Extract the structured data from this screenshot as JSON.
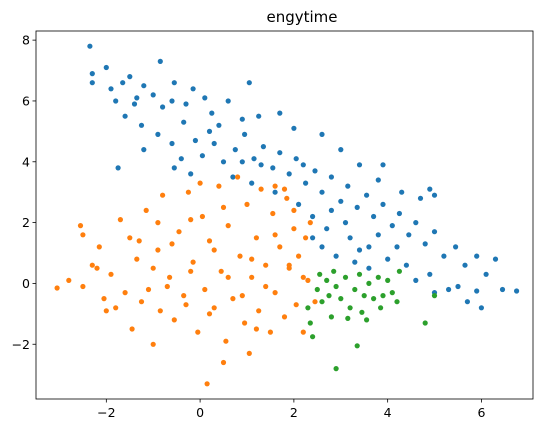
{
  "chart_data": {
    "type": "scatter",
    "title": "engytime",
    "xlabel": "",
    "ylabel": "",
    "xlim": [
      -3.5,
      7.1
    ],
    "ylim": [
      -3.8,
      8.3
    ],
    "xticks": [
      -2,
      0,
      2,
      4,
      6
    ],
    "yticks": [
      -2,
      0,
      2,
      4,
      6,
      8
    ],
    "grid": false,
    "legend": "none",
    "series": [
      {
        "color": "#1f77b4",
        "points": [
          [
            -2.35,
            7.8
          ],
          [
            -2.3,
            6.9
          ],
          [
            -2.3,
            6.6
          ],
          [
            -2.0,
            7.1
          ],
          [
            -1.9,
            6.4
          ],
          [
            -1.8,
            6.0
          ],
          [
            -1.65,
            6.6
          ],
          [
            -1.5,
            6.8
          ],
          [
            -1.35,
            6.1
          ],
          [
            -1.2,
            6.5
          ],
          [
            -1.0,
            6.2
          ],
          [
            -0.85,
            7.3
          ],
          [
            -0.6,
            6.0
          ],
          [
            -0.55,
            6.6
          ],
          [
            -0.3,
            5.9
          ],
          [
            -0.15,
            6.4
          ],
          [
            0.1,
            6.1
          ],
          [
            0.25,
            5.6
          ],
          [
            0.4,
            5.2
          ],
          [
            0.6,
            6.0
          ],
          [
            0.9,
            5.4
          ],
          [
            1.05,
            6.6
          ],
          [
            1.25,
            5.5
          ],
          [
            -1.6,
            5.5
          ],
          [
            -1.25,
            5.2
          ],
          [
            -0.9,
            4.9
          ],
          [
            -0.6,
            4.6
          ],
          [
            -0.35,
            5.3
          ],
          [
            -0.1,
            4.7
          ],
          [
            0.05,
            4.2
          ],
          [
            0.3,
            4.6
          ],
          [
            0.5,
            4.0
          ],
          [
            0.75,
            4.4
          ],
          [
            0.95,
            4.9
          ],
          [
            1.15,
            4.1
          ],
          [
            1.35,
            4.5
          ],
          [
            1.55,
            3.8
          ],
          [
            1.7,
            4.3
          ],
          [
            1.9,
            3.6
          ],
          [
            2.05,
            4.1
          ],
          [
            2.25,
            3.3
          ],
          [
            2.45,
            3.7
          ],
          [
            2.6,
            3.0
          ],
          [
            2.8,
            3.5
          ],
          [
            3.0,
            2.7
          ],
          [
            3.15,
            3.2
          ],
          [
            3.35,
            2.5
          ],
          [
            3.55,
            2.9
          ],
          [
            3.7,
            2.2
          ],
          [
            3.9,
            2.6
          ],
          [
            4.1,
            1.9
          ],
          [
            4.25,
            2.3
          ],
          [
            4.45,
            1.6
          ],
          [
            4.6,
            2.0
          ],
          [
            4.8,
            1.3
          ],
          [
            5.0,
            1.7
          ],
          [
            5.2,
            0.9
          ],
          [
            5.45,
            1.2
          ],
          [
            5.65,
            0.6
          ],
          [
            5.9,
            0.9
          ],
          [
            6.1,
            0.3
          ],
          [
            6.3,
            0.8
          ],
          [
            6.45,
            -0.2
          ],
          [
            6.75,
            -0.25
          ],
          [
            -1.75,
            3.8
          ],
          [
            -1.2,
            4.4
          ],
          [
            -0.55,
            3.8
          ],
          [
            -0.2,
            3.6
          ],
          [
            0.7,
            3.5
          ],
          [
            1.1,
            3.3
          ],
          [
            1.6,
            3.0
          ],
          [
            2.1,
            2.6
          ],
          [
            2.4,
            2.2
          ],
          [
            2.7,
            1.8
          ],
          [
            3.2,
            1.5
          ],
          [
            3.6,
            1.2
          ],
          [
            4.0,
            0.8
          ],
          [
            4.4,
            0.6
          ],
          [
            4.9,
            0.3
          ],
          [
            5.3,
            -0.2
          ],
          [
            5.7,
            -0.6
          ],
          [
            6.0,
            -0.8
          ],
          [
            5.9,
            -0.25
          ],
          [
            5.5,
            -0.1
          ],
          [
            5.0,
            -0.3
          ],
          [
            4.6,
            0.1
          ],
          [
            3.0,
            4.4
          ],
          [
            3.4,
            3.9
          ],
          [
            3.8,
            3.4
          ],
          [
            4.3,
            3.0
          ],
          [
            4.7,
            2.8
          ],
          [
            5.0,
            2.9
          ],
          [
            4.9,
            3.1
          ],
          [
            3.9,
            3.9
          ],
          [
            2.6,
            4.9
          ],
          [
            2.0,
            5.1
          ],
          [
            1.7,
            5.6
          ],
          [
            0.2,
            5.0
          ],
          [
            -0.8,
            5.8
          ],
          [
            -1.4,
            5.9
          ],
          [
            -0.4,
            4.1
          ],
          [
            0.9,
            4.0
          ],
          [
            1.3,
            3.9
          ],
          [
            2.2,
            3.9
          ],
          [
            2.8,
            2.4
          ],
          [
            3.1,
            2.0
          ],
          [
            3.4,
            1.1
          ],
          [
            3.8,
            1.6
          ],
          [
            4.2,
            1.2
          ],
          [
            2.4,
            1.5
          ],
          [
            2.6,
            1.2
          ],
          [
            2.9,
            0.9
          ],
          [
            3.3,
            0.7
          ],
          [
            3.6,
            0.5
          ]
        ]
      },
      {
        "color": "#ff7f0e",
        "points": [
          [
            -3.05,
            -0.15
          ],
          [
            -2.8,
            0.1
          ],
          [
            -2.55,
            1.9
          ],
          [
            -2.5,
            1.6
          ],
          [
            -2.5,
            -0.1
          ],
          [
            -2.3,
            0.6
          ],
          [
            -2.15,
            1.2
          ],
          [
            -2.05,
            -0.5
          ],
          [
            -2.0,
            -0.9
          ],
          [
            -1.9,
            0.3
          ],
          [
            -1.7,
            2.1
          ],
          [
            -1.6,
            -0.3
          ],
          [
            -1.5,
            1.5
          ],
          [
            -1.45,
            -1.5
          ],
          [
            -1.35,
            0.8
          ],
          [
            -1.25,
            -0.6
          ],
          [
            -1.15,
            2.4
          ],
          [
            -1.0,
            -2.0
          ],
          [
            -0.9,
            1.1
          ],
          [
            -0.85,
            -0.9
          ],
          [
            -0.8,
            2.9
          ],
          [
            -0.65,
            0.2
          ],
          [
            -0.55,
            -1.2
          ],
          [
            -0.45,
            1.7
          ],
          [
            -0.35,
            -0.4
          ],
          [
            -0.25,
            3.0
          ],
          [
            -0.15,
            0.7
          ],
          [
            -0.05,
            -1.6
          ],
          [
            0.05,
            2.2
          ],
          [
            0.1,
            -0.2
          ],
          [
            0.15,
            -3.3
          ],
          [
            0.2,
            1.4
          ],
          [
            0.3,
            -0.8
          ],
          [
            0.4,
            3.2
          ],
          [
            0.45,
            0.4
          ],
          [
            0.55,
            -1.9
          ],
          [
            0.6,
            1.9
          ],
          [
            0.7,
            -0.5
          ],
          [
            0.8,
            3.5
          ],
          [
            0.85,
            0.9
          ],
          [
            0.95,
            -1.3
          ],
          [
            1.0,
            2.6
          ],
          [
            1.05,
            -2.3
          ],
          [
            1.1,
            0.2
          ],
          [
            1.2,
            1.5
          ],
          [
            1.25,
            -0.9
          ],
          [
            1.3,
            3.1
          ],
          [
            1.4,
            0.6
          ],
          [
            1.5,
            -1.6
          ],
          [
            1.55,
            2.3
          ],
          [
            1.6,
            -0.3
          ],
          [
            1.7,
            1.2
          ],
          [
            1.8,
            -1.1
          ],
          [
            1.85,
            2.8
          ],
          [
            1.9,
            0.5
          ],
          [
            2.0,
            1.8
          ],
          [
            2.05,
            -0.7
          ],
          [
            2.1,
            0.9
          ],
          [
            2.2,
            -1.6
          ],
          [
            2.25,
            1.5
          ],
          [
            2.3,
            0.1
          ],
          [
            2.35,
            2.0
          ],
          [
            2.45,
            -0.6
          ],
          [
            2.2,
            0.2
          ],
          [
            1.9,
            0.6
          ],
          [
            1.6,
            1.6
          ],
          [
            1.1,
            0.8
          ],
          [
            0.6,
            0.2
          ],
          [
            0.3,
            1.1
          ],
          [
            -0.2,
            0.4
          ],
          [
            -0.6,
            1.3
          ],
          [
            -1.0,
            0.5
          ],
          [
            -1.3,
            1.4
          ],
          [
            -0.7,
            -0.1
          ],
          [
            -0.3,
            -0.7
          ],
          [
            0.2,
            -1.0
          ],
          [
            0.9,
            -0.4
          ],
          [
            1.4,
            -0.1
          ],
          [
            0.5,
            2.5
          ],
          [
            -0.2,
            2.1
          ],
          [
            -0.9,
            2.0
          ],
          [
            1.6,
            3.2
          ],
          [
            0.5,
            -2.6
          ],
          [
            1.2,
            -1.5
          ],
          [
            -1.8,
            -0.8
          ],
          [
            -1.1,
            -0.2
          ],
          [
            -2.2,
            0.5
          ],
          [
            2.0,
            2.4
          ],
          [
            1.8,
            3.1
          ],
          [
            0.0,
            3.3
          ]
        ]
      },
      {
        "color": "#2ca02c",
        "points": [
          [
            2.3,
            -0.8
          ],
          [
            2.35,
            -1.3
          ],
          [
            2.4,
            -1.75
          ],
          [
            2.5,
            -0.2
          ],
          [
            2.55,
            0.3
          ],
          [
            2.6,
            -0.6
          ],
          [
            2.7,
            0.1
          ],
          [
            2.75,
            -0.4
          ],
          [
            2.8,
            -1.1
          ],
          [
            2.85,
            0.4
          ],
          [
            2.9,
            -0.1
          ],
          [
            2.9,
            -2.8
          ],
          [
            3.0,
            -0.5
          ],
          [
            3.1,
            0.2
          ],
          [
            3.2,
            -0.8
          ],
          [
            3.3,
            -0.2
          ],
          [
            3.35,
            -2.05
          ],
          [
            3.4,
            0.3
          ],
          [
            3.5,
            -0.4
          ],
          [
            3.6,
            0.0
          ],
          [
            3.7,
            -0.5
          ],
          [
            3.8,
            0.2
          ],
          [
            3.85,
            -0.8
          ],
          [
            3.9,
            -0.4
          ],
          [
            4.0,
            0.1
          ],
          [
            4.1,
            -0.3
          ],
          [
            4.2,
            -0.6
          ],
          [
            4.25,
            0.4
          ],
          [
            4.8,
            -1.3
          ],
          [
            5.0,
            -0.4
          ],
          [
            3.15,
            -1.15
          ],
          [
            3.45,
            -0.95
          ],
          [
            3.55,
            -1.2
          ]
        ]
      }
    ]
  }
}
